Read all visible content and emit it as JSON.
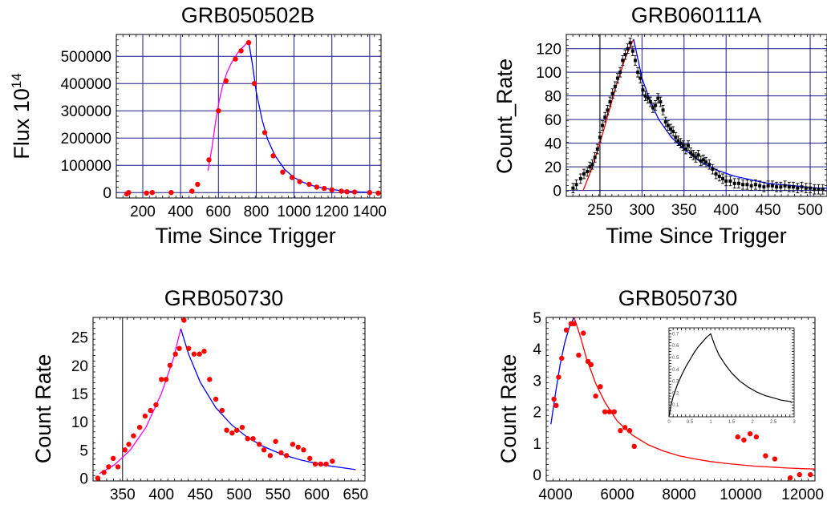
{
  "colors": {
    "grid": "#1a1a8c",
    "points": "#ff0000",
    "rise_fit": "#ff00ff",
    "decay_fit": "#0000ff",
    "red_fit": "#ff0000",
    "errorbar": "#000000",
    "frame": "#000000"
  },
  "chart_data": [
    {
      "type": "scatter",
      "title": "GRB050502B",
      "xlabel": "Time  Since Trigger",
      "ylabel": "Flux 10",
      "ylabel_sup": "14",
      "xlim": [
        60,
        1460
      ],
      "ylim": [
        -20000,
        580000
      ],
      "xticks": [
        200,
        400,
        600,
        800,
        1000,
        1200,
        1400
      ],
      "xtick_labels": [
        "200",
        "400",
        "600",
        "800",
        "1000",
        "1200",
        "1400"
      ],
      "yticks": [
        0,
        100000,
        200000,
        300000,
        400000,
        500000
      ],
      "ytick_labels": [
        "0",
        "100000",
        "200000",
        "300000",
        "400000",
        "500000"
      ],
      "grid": true,
      "points": {
        "x": [
          115,
          125,
          220,
          250,
          350,
          460,
          490,
          550,
          600,
          640,
          690,
          720,
          760,
          790,
          845,
          890,
          940,
          990,
          1030,
          1080,
          1120,
          1160,
          1200,
          1250,
          1280,
          1320,
          1400,
          1445
        ],
        "y": [
          -5000,
          0,
          -2000,
          0,
          0,
          5000,
          30000,
          120000,
          300000,
          410000,
          490000,
          520000,
          550000,
          400000,
          220000,
          135000,
          75000,
          55000,
          40000,
          30000,
          20000,
          15000,
          10000,
          5000,
          3000,
          2000,
          0,
          -2000
        ]
      },
      "series": [
        {
          "color_key": "rise_fit",
          "x": [
            545,
            565,
            585,
            605,
            625,
            645,
            665,
            685,
            705,
            725,
            745,
            760
          ],
          "y": [
            80000,
            160000,
            260000,
            340000,
            400000,
            440000,
            470000,
            495000,
            515000,
            530000,
            545000,
            555000
          ]
        },
        {
          "color_key": "decay_fit",
          "x": [
            760,
            780,
            800,
            830,
            860,
            900,
            950,
            1000,
            1050,
            1100,
            1150,
            1200,
            1250,
            1300,
            1350,
            1400
          ],
          "y": [
            555000,
            470000,
            370000,
            270000,
            195000,
            135000,
            85000,
            55000,
            37000,
            25000,
            17000,
            11000,
            7000,
            4000,
            2000,
            1000
          ]
        }
      ]
    },
    {
      "type": "scatter",
      "title": "GRB060111A",
      "xlabel": "Time  Since Trigger",
      "ylabel": "Count_Rate",
      "xlim": [
        210,
        520
      ],
      "ylim": [
        -5,
        132
      ],
      "xticks": [
        250,
        300,
        350,
        400,
        450,
        500
      ],
      "xtick_labels": [
        "250",
        "300",
        "350",
        "400",
        "450",
        "500"
      ],
      "yticks": [
        0,
        20,
        40,
        60,
        80,
        100,
        120
      ],
      "ytick_labels": [
        "0",
        "20",
        "40",
        "60",
        "80",
        "100",
        "120"
      ],
      "grid": true,
      "vline": 250,
      "errorbars": true,
      "points": {
        "x": [
          218,
          222,
          227,
          231,
          235,
          238,
          241,
          244,
          247,
          250,
          253,
          256,
          259,
          262,
          265,
          268,
          271,
          274,
          277,
          280,
          283,
          286,
          289,
          292,
          295,
          298,
          301,
          304,
          307,
          310,
          313,
          316,
          319,
          322,
          325,
          328,
          331,
          334,
          337,
          340,
          343,
          346,
          349,
          352,
          355,
          358,
          361,
          364,
          367,
          370,
          373,
          376,
          380,
          384,
          388,
          392,
          396,
          400,
          405,
          410,
          415,
          420,
          425,
          430,
          435,
          440,
          445,
          450,
          455,
          460,
          465,
          470,
          475,
          480,
          485,
          490,
          495,
          500,
          505,
          510,
          515
        ],
        "y": [
          2,
          5,
          10,
          14,
          16,
          20,
          22,
          28,
          35,
          45,
          55,
          62,
          68,
          75,
          82,
          88,
          95,
          100,
          110,
          115,
          120,
          125,
          118,
          110,
          100,
          95,
          85,
          80,
          78,
          75,
          70,
          72,
          78,
          75,
          68,
          58,
          55,
          52,
          50,
          45,
          42,
          40,
          38,
          35,
          38,
          32,
          30,
          28,
          30,
          25,
          26,
          24,
          22,
          18,
          14,
          12,
          10,
          8,
          8,
          6,
          6,
          5,
          5,
          4,
          5,
          4,
          3,
          4,
          4,
          3,
          3,
          4,
          3,
          3,
          2,
          3,
          2,
          2,
          1,
          1,
          1
        ]
      },
      "series": [
        {
          "color_key": "red_fit",
          "x": [
            230,
            240,
            250,
            260,
            270,
            280,
            290
          ],
          "y": [
            0,
            18,
            40,
            65,
            90,
            112,
            128
          ]
        },
        {
          "color_key": "decay_fit",
          "x": [
            290,
            300,
            310,
            320,
            335,
            350,
            370,
            390,
            410,
            430,
            450,
            480,
            510,
            520
          ],
          "y": [
            128,
            95,
            75,
            60,
            45,
            35,
            24,
            17,
            12,
            9,
            6,
            4,
            2,
            2
          ]
        }
      ]
    },
    {
      "type": "scatter",
      "title": "GRB050730",
      "xlabel": "",
      "ylabel": "Count Rate",
      "xlim": [
        312,
        662
      ],
      "ylim": [
        -0.5,
        28.5
      ],
      "xticks": [
        350,
        400,
        450,
        500,
        550,
        600,
        650
      ],
      "xtick_labels": [
        "350",
        "400",
        "450",
        "500",
        "550",
        "600",
        "650"
      ],
      "yticks": [
        0,
        5,
        10,
        15,
        20,
        25
      ],
      "ytick_labels": [
        "0",
        "5",
        "10",
        "15",
        "20",
        "25"
      ],
      "grid": false,
      "vline": 350,
      "points": {
        "x": [
          318,
          326,
          332,
          338,
          344,
          353,
          358,
          364,
          372,
          379,
          386,
          393,
          400,
          406,
          411,
          418,
          423,
          429,
          435,
          442,
          449,
          455,
          462,
          470,
          478,
          484,
          491,
          497,
          504,
          511,
          518,
          526,
          532,
          540,
          547,
          554,
          561,
          569,
          576,
          583,
          591,
          598,
          605,
          612,
          620
        ],
        "y": [
          0,
          1,
          2,
          3.5,
          2,
          5,
          6,
          7.5,
          9,
          11,
          12,
          13,
          17.5,
          17.5,
          20,
          22,
          23,
          28,
          23,
          22,
          22,
          22.5,
          17.5,
          14,
          12,
          8.5,
          8,
          8.5,
          9,
          7,
          7,
          6,
          5,
          4,
          6.5,
          4.5,
          4,
          6,
          5.5,
          5,
          3.5,
          2.5,
          2.5,
          2.5,
          3
        ]
      },
      "series": [
        {
          "color_key": "rise_fit",
          "x": [
            320,
            340,
            360,
            380,
            400,
            415,
            425
          ],
          "y": [
            0.8,
            2.4,
            5,
            9,
            15,
            21,
            26.5
          ]
        },
        {
          "color_key": "decay_fit",
          "x": [
            425,
            435,
            450,
            470,
            490,
            510,
            530,
            555,
            580,
            610,
            650
          ],
          "y": [
            26.5,
            22,
            17,
            12.5,
            9.5,
            7.3,
            5.7,
            4.2,
            3.2,
            2.3,
            1.5
          ]
        }
      ]
    },
    {
      "type": "scatter",
      "title": "GRB050730",
      "xlabel": "",
      "ylabel": "Count Rate",
      "xlim": [
        3700,
        12400
      ],
      "ylim": [
        -0.2,
        5.0
      ],
      "xticks": [
        4000,
        6000,
        8000,
        10000,
        12000
      ],
      "xtick_labels": [
        "4000",
        "6000",
        "8000",
        "10000",
        "12000"
      ],
      "yticks": [
        0,
        1,
        2,
        3,
        4,
        5
      ],
      "ytick_labels": [
        "0",
        "1",
        "2",
        "3",
        "4",
        "5"
      ],
      "grid": false,
      "points": {
        "x": [
          3950,
          4020,
          4100,
          4200,
          4350,
          4500,
          4600,
          4750,
          4900,
          5050,
          5150,
          5300,
          5450,
          5600,
          5750,
          5900,
          6100,
          6250,
          6400,
          6550,
          9900,
          10100,
          10300,
          10500,
          10800,
          11100,
          11600,
          11900,
          12250
        ],
        "y": [
          2.4,
          2.2,
          3.1,
          3.7,
          4.6,
          4.8,
          4.8,
          3.8,
          4.5,
          3.6,
          3.5,
          2.5,
          2.8,
          2,
          2,
          2,
          1.4,
          1.5,
          1.4,
          0.9,
          1.2,
          1.1,
          1.3,
          1.2,
          0.6,
          0.5,
          -0.1,
          0.0,
          0.0
        ]
      },
      "series": [
        {
          "color_key": "decay_fit",
          "x": [
            3850,
            4000,
            4150,
            4300,
            4450,
            4600
          ],
          "y": [
            1.6,
            2.6,
            3.5,
            4.2,
            4.7,
            5.0
          ]
        },
        {
          "color_key": "red_fit",
          "x": [
            4600,
            4800,
            5000,
            5300,
            5600,
            6000,
            6500,
            7000,
            7500,
            8000,
            8500,
            9000,
            9500,
            10000,
            10500,
            11000,
            11500,
            12000,
            12400
          ],
          "y": [
            5.0,
            4.4,
            3.7,
            2.9,
            2.3,
            1.7,
            1.25,
            0.95,
            0.75,
            0.6,
            0.5,
            0.42,
            0.36,
            0.31,
            0.27,
            0.24,
            0.21,
            0.19,
            0.18
          ]
        }
      ],
      "inset": {
        "xlim": [
          0,
          3
        ],
        "ylim": [
          0,
          0.75
        ],
        "xticks": [
          0,
          0.5,
          1,
          1.5,
          2,
          2.5,
          3
        ],
        "xtick_labels": [
          "0",
          "0.5",
          "1",
          "1.5",
          "2",
          "2.5",
          "3"
        ],
        "yticks": [
          0.1,
          0.2,
          0.3,
          0.4,
          0.5,
          0.6,
          0.7
        ],
        "ytick_labels": [
          "0.1",
          "0.2",
          "0.3",
          "0.4",
          "0.5",
          "0.6",
          "0.7"
        ],
        "curve": {
          "x": [
            0,
            0.05,
            0.1,
            0.2,
            0.3,
            0.4,
            0.5,
            0.6,
            0.7,
            0.8,
            0.9,
            1.0,
            1.1,
            1.2,
            1.35,
            1.5,
            1.7,
            1.9,
            2.1,
            2.3,
            2.5,
            2.7,
            2.9,
            2.95
          ],
          "y": [
            0,
            0.1,
            0.17,
            0.27,
            0.35,
            0.42,
            0.48,
            0.54,
            0.59,
            0.63,
            0.67,
            0.7,
            0.6,
            0.52,
            0.44,
            0.37,
            0.3,
            0.25,
            0.21,
            0.18,
            0.16,
            0.14,
            0.13,
            0.12
          ]
        }
      }
    }
  ]
}
